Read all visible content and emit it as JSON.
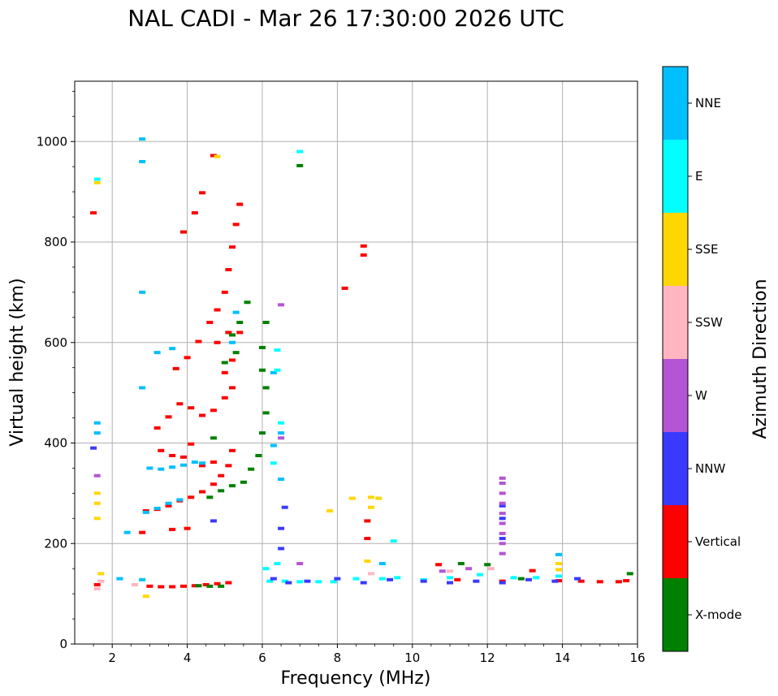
{
  "chart_data": {
    "type": "scatter",
    "title": "NAL CADI - Mar 26 17:30:00 2026 UTC",
    "xlabel": "Frequency (MHz)",
    "ylabel": "Virtual height (km)",
    "xlim": [
      1,
      16
    ],
    "ylim": [
      0,
      1120
    ],
    "xticks": [
      2,
      4,
      6,
      8,
      10,
      12,
      14,
      16
    ],
    "yticks": [
      0,
      200,
      400,
      600,
      800,
      1000
    ],
    "xtick_labels": [
      "2",
      "4",
      "6",
      "8",
      "10",
      "12",
      "14",
      "16"
    ],
    "ytick_labels": [
      "0",
      "200",
      "400",
      "600",
      "800",
      "1000"
    ],
    "grid": true,
    "colorbar": {
      "label": "Azimuth Direction",
      "categories": [
        {
          "name": "X-mode",
          "color": "#008000"
        },
        {
          "name": "Vertical",
          "color": "#ff0000"
        },
        {
          "name": "NNW",
          "color": "#3a3aff"
        },
        {
          "name": "W",
          "color": "#b455d5"
        },
        {
          "name": "SSW",
          "color": "#ffb6c1"
        },
        {
          "name": "SSE",
          "color": "#ffd700"
        },
        {
          "name": "E",
          "color": "#00ffff"
        },
        {
          "name": "NNE",
          "color": "#00bfff"
        }
      ]
    },
    "series": [
      {
        "name": "Vertical",
        "color": "#ff0000",
        "points": [
          [
            2.9,
            265
          ],
          [
            3.2,
            268
          ],
          [
            3.5,
            275
          ],
          [
            3.8,
            285
          ],
          [
            4.1,
            292
          ],
          [
            4.4,
            303
          ],
          [
            4.7,
            318
          ],
          [
            4.9,
            335
          ],
          [
            5.1,
            355
          ],
          [
            5.2,
            385
          ],
          [
            2.8,
            222
          ],
          [
            3.6,
            228
          ],
          [
            4.0,
            230
          ],
          [
            3.3,
            385
          ],
          [
            3.6,
            375
          ],
          [
            3.9,
            372
          ],
          [
            4.1,
            398
          ],
          [
            4.4,
            355
          ],
          [
            4.7,
            362
          ],
          [
            3.2,
            430
          ],
          [
            3.5,
            452
          ],
          [
            3.8,
            478
          ],
          [
            4.1,
            470
          ],
          [
            4.4,
            455
          ],
          [
            4.7,
            465
          ],
          [
            5.0,
            490
          ],
          [
            5.2,
            510
          ],
          [
            3.7,
            548
          ],
          [
            4.0,
            570
          ],
          [
            4.3,
            602
          ],
          [
            4.6,
            640
          ],
          [
            4.8,
            665
          ],
          [
            5.0,
            700
          ],
          [
            5.1,
            745
          ],
          [
            5.2,
            790
          ],
          [
            5.3,
            835
          ],
          [
            5.4,
            875
          ],
          [
            3.9,
            820
          ],
          [
            4.2,
            858
          ],
          [
            4.4,
            898
          ],
          [
            4.7,
            972
          ],
          [
            5.0,
            540
          ],
          [
            5.2,
            565
          ],
          [
            5.4,
            620
          ],
          [
            5.1,
            620
          ],
          [
            4.8,
            600
          ],
          [
            3.0,
            115
          ],
          [
            3.3,
            114
          ],
          [
            3.6,
            114
          ],
          [
            3.9,
            115
          ],
          [
            4.2,
            116
          ],
          [
            4.5,
            118
          ],
          [
            4.8,
            120
          ],
          [
            5.1,
            122
          ],
          [
            8.2,
            708
          ],
          [
            8.7,
            774
          ],
          [
            8.7,
            792
          ],
          [
            8.8,
            210
          ],
          [
            8.8,
            245
          ],
          [
            10.7,
            158
          ],
          [
            11.2,
            128
          ],
          [
            12.4,
            125
          ],
          [
            13.2,
            146
          ],
          [
            13.9,
            126
          ],
          [
            14.5,
            125
          ],
          [
            15.0,
            124
          ],
          [
            15.5,
            124
          ],
          [
            15.7,
            126
          ],
          [
            1.6,
            118
          ],
          [
            1.5,
            858
          ]
        ]
      },
      {
        "name": "X-mode",
        "color": "#008000",
        "points": [
          [
            4.6,
            292
          ],
          [
            4.9,
            305
          ],
          [
            5.2,
            315
          ],
          [
            5.5,
            322
          ],
          [
            5.7,
            348
          ],
          [
            5.9,
            375
          ],
          [
            6.0,
            420
          ],
          [
            6.1,
            460
          ],
          [
            6.1,
            510
          ],
          [
            6.0,
            545
          ],
          [
            6.0,
            590
          ],
          [
            6.1,
            640
          ],
          [
            5.2,
            615
          ],
          [
            5.3,
            580
          ],
          [
            5.4,
            640
          ],
          [
            5.6,
            680
          ],
          [
            5.0,
            560
          ],
          [
            4.7,
            410
          ],
          [
            4.3,
            116
          ],
          [
            4.6,
            115
          ],
          [
            4.9,
            115
          ],
          [
            7.0,
            952
          ],
          [
            11.3,
            160
          ],
          [
            12.0,
            158
          ],
          [
            12.9,
            130
          ],
          [
            15.8,
            140
          ]
        ]
      },
      {
        "name": "NNE",
        "color": "#00bfff",
        "points": [
          [
            2.4,
            222
          ],
          [
            2.9,
            262
          ],
          [
            3.2,
            270
          ],
          [
            3.5,
            280
          ],
          [
            3.8,
            287
          ],
          [
            3.0,
            350
          ],
          [
            3.3,
            348
          ],
          [
            3.6,
            352
          ],
          [
            3.9,
            356
          ],
          [
            4.2,
            362
          ],
          [
            4.4,
            360
          ],
          [
            1.6,
            420
          ],
          [
            1.6,
            440
          ],
          [
            2.8,
            1005
          ],
          [
            2.8,
            960
          ],
          [
            2.8,
            700
          ],
          [
            2.8,
            510
          ],
          [
            3.2,
            580
          ],
          [
            3.6,
            588
          ],
          [
            5.2,
            600
          ],
          [
            5.3,
            660
          ],
          [
            6.3,
            395
          ],
          [
            6.5,
            420
          ],
          [
            6.5,
            328
          ],
          [
            6.3,
            540
          ],
          [
            2.2,
            130
          ],
          [
            2.8,
            128
          ],
          [
            9.2,
            160
          ],
          [
            13.9,
            178
          ]
        ]
      },
      {
        "name": "E",
        "color": "#00ffff",
        "points": [
          [
            6.2,
            125
          ],
          [
            6.6,
            125
          ],
          [
            7.0,
            124
          ],
          [
            7.5,
            124
          ],
          [
            7.9,
            124
          ],
          [
            8.5,
            130
          ],
          [
            9.2,
            130
          ],
          [
            9.6,
            132
          ],
          [
            10.3,
            128
          ],
          [
            11.0,
            132
          ],
          [
            11.8,
            138
          ],
          [
            12.7,
            132
          ],
          [
            13.3,
            132
          ],
          [
            13.9,
            135
          ],
          [
            6.4,
            585
          ],
          [
            6.4,
            545
          ],
          [
            6.5,
            440
          ],
          [
            6.3,
            360
          ],
          [
            7.0,
            980
          ],
          [
            9.5,
            205
          ],
          [
            1.6,
            925
          ],
          [
            6.1,
            150
          ],
          [
            6.4,
            160
          ]
        ]
      },
      {
        "name": "NNW",
        "color": "#3a3aff",
        "points": [
          [
            6.3,
            130
          ],
          [
            6.7,
            122
          ],
          [
            7.2,
            125
          ],
          [
            8.0,
            130
          ],
          [
            8.7,
            122
          ],
          [
            9.4,
            128
          ],
          [
            10.3,
            125
          ],
          [
            11.0,
            122
          ],
          [
            11.7,
            125
          ],
          [
            12.4,
            122
          ],
          [
            13.1,
            128
          ],
          [
            13.8,
            125
          ],
          [
            14.4,
            130
          ],
          [
            6.5,
            190
          ],
          [
            6.5,
            230
          ],
          [
            6.6,
            272
          ],
          [
            1.5,
            390
          ],
          [
            4.7,
            245
          ],
          [
            12.4,
            210
          ],
          [
            12.4,
            250
          ],
          [
            12.4,
            275
          ]
        ]
      },
      {
        "name": "W",
        "color": "#b455d5",
        "points": [
          [
            12.4,
            180
          ],
          [
            12.4,
            200
          ],
          [
            12.4,
            220
          ],
          [
            12.4,
            240
          ],
          [
            12.4,
            260
          ],
          [
            12.4,
            280
          ],
          [
            12.4,
            300
          ],
          [
            12.4,
            320
          ],
          [
            12.4,
            330
          ],
          [
            6.5,
            410
          ],
          [
            6.5,
            675
          ],
          [
            1.6,
            335
          ],
          [
            7.0,
            160
          ],
          [
            10.8,
            145
          ],
          [
            11.5,
            150
          ]
        ]
      },
      {
        "name": "SSE",
        "color": "#ffd700",
        "points": [
          [
            1.6,
            250
          ],
          [
            1.6,
            280
          ],
          [
            1.6,
            300
          ],
          [
            1.7,
            140
          ],
          [
            2.9,
            95
          ],
          [
            7.8,
            265
          ],
          [
            8.4,
            290
          ],
          [
            8.9,
            272
          ],
          [
            8.9,
            292
          ],
          [
            9.1,
            290
          ],
          [
            8.8,
            165
          ],
          [
            13.9,
            160
          ],
          [
            13.9,
            148
          ],
          [
            1.6,
            918
          ],
          [
            4.8,
            970
          ]
        ]
      },
      {
        "name": "SSW",
        "color": "#ffb6c1",
        "points": [
          [
            1.6,
            110
          ],
          [
            1.7,
            125
          ],
          [
            8.9,
            140
          ],
          [
            11.0,
            145
          ],
          [
            12.1,
            150
          ],
          [
            2.6,
            118
          ]
        ]
      }
    ]
  }
}
